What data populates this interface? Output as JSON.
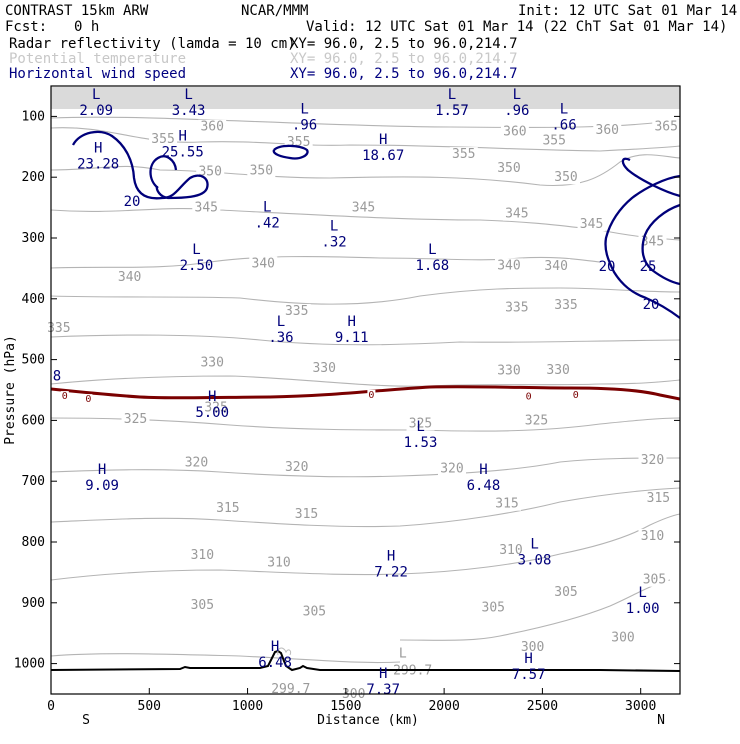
{
  "header": {
    "title": "CONTRAST 15km ARW",
    "org": "NCAR/MMM",
    "init": "Init: 12 UTC Sat 01 Mar 14",
    "fcst_label": "Fcst:",
    "fcst_value": "0 h",
    "valid": "Valid: 12 UTC Sat 01 Mar 14 (22 ChT Sat 01 Mar 14)",
    "fields": [
      {
        "name": "Radar reflectivity (lamda = 10 cm)",
        "xy": "XY=  96.0,  2.5 to  96.0,214.7",
        "color": "#000000"
      },
      {
        "name": "Potential temperature",
        "xy": "XY=  96.0,  2.5 to  96.0,214.7",
        "color": "#c8c8c8"
      },
      {
        "name": "Horizontal wind speed",
        "xy": "XY=  96.0,  2.5 to  96.0,214.7",
        "color": "#000080"
      }
    ]
  },
  "chart_data": {
    "type": "vertical-cross-section",
    "xlabel": "Distance (km)",
    "ylabel": "Pressure (hPa)",
    "xlim": [
      0,
      3200
    ],
    "ylim": [
      1050,
      50
    ],
    "x_ticks": [
      "0",
      "500",
      "1000",
      "1500",
      "2000",
      "2500",
      "3000"
    ],
    "y_ticks": [
      "100",
      "200",
      "300",
      "400",
      "500",
      "600",
      "700",
      "800",
      "900",
      "1000"
    ],
    "x_end_labels": {
      "left": "S",
      "right": "N"
    },
    "theta_labels": [
      {
        "text": "360",
        "x": 820,
        "p": 117
      },
      {
        "text": "365",
        "x": 3130,
        "p": 117
      },
      {
        "text": "360",
        "x": 2830,
        "p": 122
      },
      {
        "text": "360",
        "x": 2360,
        "p": 125
      },
      {
        "text": "355",
        "x": 570,
        "p": 137
      },
      {
        "text": "355",
        "x": 1260,
        "p": 142
      },
      {
        "text": "355",
        "x": 2560,
        "p": 140
      },
      {
        "text": "355",
        "x": 2100,
        "p": 162
      },
      {
        "text": "350",
        "x": 810,
        "p": 191
      },
      {
        "text": "350",
        "x": 1070,
        "p": 189
      },
      {
        "text": "350",
        "x": 2330,
        "p": 185
      },
      {
        "text": "350",
        "x": 2620,
        "p": 200
      },
      {
        "text": "345",
        "x": 790,
        "p": 250
      },
      {
        "text": "345",
        "x": 1590,
        "p": 250
      },
      {
        "text": "345",
        "x": 2370,
        "p": 260
      },
      {
        "text": "345",
        "x": 2750,
        "p": 277
      },
      {
        "text": "345",
        "x": 3060,
        "p": 306
      },
      {
        "text": "340",
        "x": 400,
        "p": 364
      },
      {
        "text": "340",
        "x": 1080,
        "p": 342
      },
      {
        "text": "340",
        "x": 2330,
        "p": 345
      },
      {
        "text": "340",
        "x": 2570,
        "p": 346
      },
      {
        "text": "335",
        "x": 1250,
        "p": 420
      },
      {
        "text": "335",
        "x": 2370,
        "p": 414
      },
      {
        "text": "335",
        "x": 2620,
        "p": 410
      },
      {
        "text": "335",
        "x": 40,
        "p": 448
      },
      {
        "text": "330",
        "x": 820,
        "p": 505
      },
      {
        "text": "330",
        "x": 1390,
        "p": 514
      },
      {
        "text": "330",
        "x": 2330,
        "p": 518
      },
      {
        "text": "330",
        "x": 2580,
        "p": 517
      },
      {
        "text": "325",
        "x": 430,
        "p": 598
      },
      {
        "text": "325",
        "x": 840,
        "p": 579
      },
      {
        "text": "325",
        "x": 1880,
        "p": 605
      },
      {
        "text": "325",
        "x": 2470,
        "p": 600
      },
      {
        "text": "320",
        "x": 740,
        "p": 669
      },
      {
        "text": "320",
        "x": 1250,
        "p": 677
      },
      {
        "text": "320",
        "x": 2040,
        "p": 679
      },
      {
        "text": "320",
        "x": 3060,
        "p": 665
      },
      {
        "text": "315",
        "x": 900,
        "p": 744
      },
      {
        "text": "315",
        "x": 1300,
        "p": 754
      },
      {
        "text": "315",
        "x": 2320,
        "p": 737
      },
      {
        "text": "315",
        "x": 3090,
        "p": 728
      },
      {
        "text": "310",
        "x": 770,
        "p": 821
      },
      {
        "text": "310",
        "x": 1160,
        "p": 834
      },
      {
        "text": "310",
        "x": 2340,
        "p": 813
      },
      {
        "text": "310",
        "x": 3060,
        "p": 790
      },
      {
        "text": "305",
        "x": 770,
        "p": 904
      },
      {
        "text": "305",
        "x": 1340,
        "p": 914
      },
      {
        "text": "305",
        "x": 2250,
        "p": 908
      },
      {
        "text": "305",
        "x": 2620,
        "p": 882
      },
      {
        "text": "305",
        "x": 3070,
        "p": 862
      },
      {
        "text": "300",
        "x": 2910,
        "p": 957
      },
      {
        "text": "300",
        "x": 2450,
        "p": 973
      },
      {
        "text": "299.7",
        "x": 1840,
        "p": 1011
      },
      {
        "text": "299.7",
        "x": 1220,
        "p": 1042
      },
      {
        "text": "300",
        "x": 1540,
        "p": 1050
      },
      {
        "text": "L",
        "x": 1790,
        "p": 983
      }
    ],
    "wind_contours": [
      {
        "value": "20"
      },
      {
        "value": "20"
      },
      {
        "value": "25"
      },
      {
        "value": "20"
      }
    ],
    "wind_extrema": [
      {
        "kind": "L",
        "value": "2.09",
        "x": 230,
        "p": 78
      },
      {
        "kind": "L",
        "value": "3.43",
        "x": 700,
        "p": 78
      },
      {
        "kind": "L",
        "value": ".96",
        "x": 1290,
        "p": 102
      },
      {
        "kind": "L",
        "value": "1.57",
        "x": 2040,
        "p": 78
      },
      {
        "kind": "L",
        "value": ".96",
        "x": 2370,
        "p": 78
      },
      {
        "kind": "L",
        "value": ".66",
        "x": 2610,
        "p": 102
      },
      {
        "kind": "H",
        "value": "23.28",
        "x": 240,
        "p": 166
      },
      {
        "kind": "H",
        "value": "25.55",
        "x": 670,
        "p": 146
      },
      {
        "kind": "H",
        "value": "18.67",
        "x": 1690,
        "p": 152
      },
      {
        "kind": "L",
        "value": ".42",
        "x": 1100,
        "p": 263
      },
      {
        "kind": "L",
        "value": ".32",
        "x": 1440,
        "p": 294
      },
      {
        "kind": "L",
        "value": "2.50",
        "x": 740,
        "p": 333
      },
      {
        "kind": "L",
        "value": "1.68",
        "x": 1940,
        "p": 333
      },
      {
        "kind": "L",
        "value": ".36",
        "x": 1170,
        "p": 451
      },
      {
        "kind": "H",
        "value": "9.11",
        "x": 1530,
        "p": 451
      },
      {
        "kind": "H",
        "value": "5.00",
        "x": 820,
        "p": 575
      },
      {
        "kind": "L",
        "value": "1.53",
        "x": 1880,
        "p": 624
      },
      {
        "kind": "H",
        "value": "9.09",
        "x": 260,
        "p": 695
      },
      {
        "kind": "H",
        "value": "6.48",
        "x": 2200,
        "p": 695
      },
      {
        "kind": "L",
        "value": "3.08",
        "x": 2460,
        "p": 817
      },
      {
        "kind": "H",
        "value": "7.22",
        "x": 1730,
        "p": 837
      },
      {
        "kind": "L",
        "value": "1.00",
        "x": 3010,
        "p": 897
      },
      {
        "kind": "H",
        "value": "6.48",
        "x": 1140,
        "p": 986
      },
      {
        "kind": "H",
        "value": "7.57",
        "x": 2430,
        "p": 1006
      },
      {
        "kind": "H",
        "value": "7.37",
        "x": 1690,
        "p": 1030
      }
    ],
    "reflectivity_zero_labels": [
      {
        "text": "0",
        "x": 70,
        "p": 560
      },
      {
        "text": "0",
        "x": 190,
        "p": 565
      },
      {
        "text": "0",
        "x": 1630,
        "p": 558
      },
      {
        "text": "0",
        "x": 2430,
        "p": 561
      },
      {
        "text": "0",
        "x": 2670,
        "p": 558
      }
    ],
    "left_edge_label": {
      "text": "8",
      "x": 20,
      "p": 528
    }
  }
}
